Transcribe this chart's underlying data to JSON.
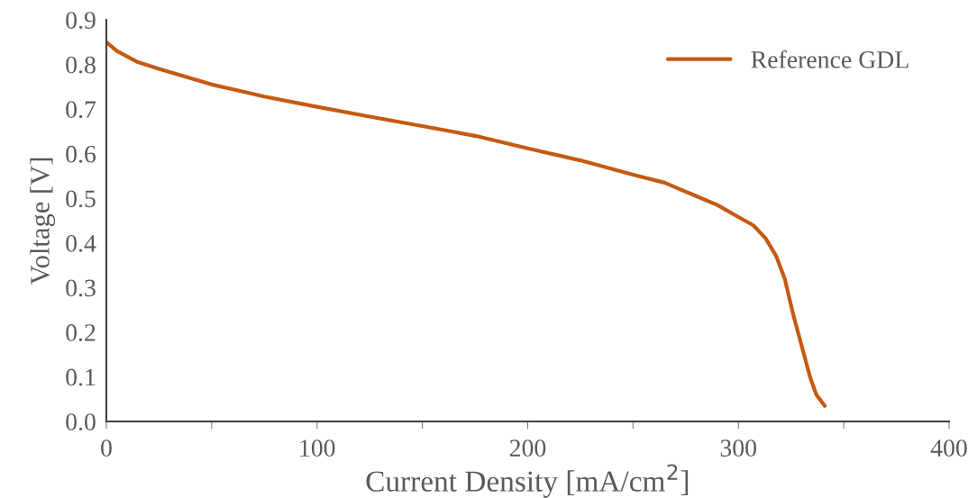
{
  "chart_data": {
    "type": "line",
    "xlabel": "Current Density [mA/cm$^{2}$]",
    "ylabel": "Voltage [V]",
    "xlim": [
      0,
      400
    ],
    "ylim": [
      0,
      0.9
    ],
    "xticks": [
      0,
      {
        "value": 50,
        "label": null
      },
      100,
      {
        "value": 150,
        "label": null
      },
      200,
      {
        "value": 250,
        "label": null
      },
      300,
      {
        "value": 350,
        "label": null
      },
      400
    ],
    "yticks": [
      {
        "value": 0,
        "label": "0.0"
      },
      0.1,
      0.2,
      0.3,
      0.4,
      0.5,
      0.6,
      0.7,
      0.8,
      0.9
    ],
    "grid": false,
    "legend": "top right",
    "marker": "none",
    "line_style": "solid",
    "series": [
      {
        "name": "Reference GDL",
        "color": "#c55a11",
        "x": [
          0,
          5,
          15,
          25,
          50,
          75,
          100,
          125,
          150,
          175,
          200,
          225,
          250,
          265,
          280,
          290,
          300,
          307,
          313,
          318,
          322,
          326,
          330,
          334,
          337,
          341
        ],
        "values": [
          0.85,
          0.83,
          0.805,
          0.79,
          0.755,
          0.728,
          0.705,
          0.683,
          0.662,
          0.64,
          0.612,
          0.585,
          0.553,
          0.535,
          0.505,
          0.485,
          0.458,
          0.44,
          0.41,
          0.37,
          0.32,
          0.24,
          0.17,
          0.1,
          0.06,
          0.035
        ]
      }
    ]
  }
}
